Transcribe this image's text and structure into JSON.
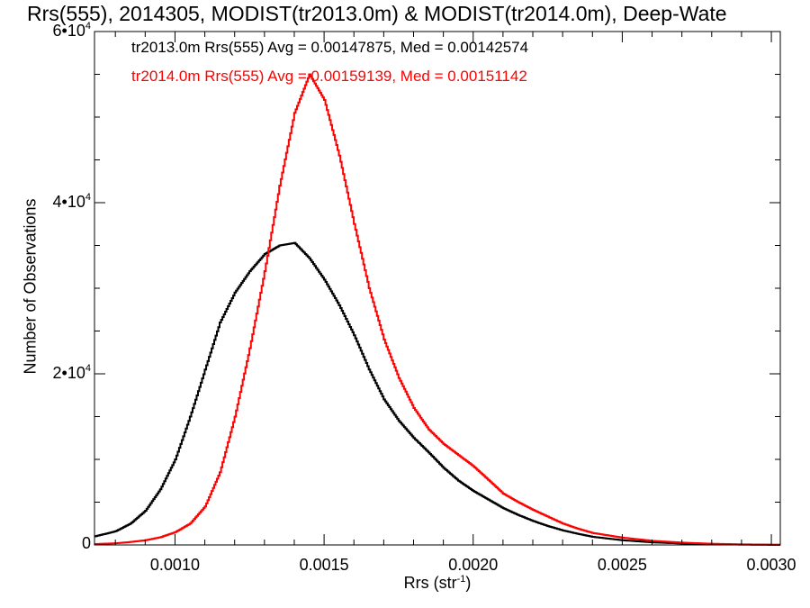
{
  "chart_data": {
    "type": "line",
    "title": "Rrs(555), 2014305, MODIST(tr2013.0m) & MODIST(tr2014.0m), Deep-Wate",
    "xlabel": "Rrs (str",
    "xlabel_exp": "-1",
    "xlabel_close": ")",
    "ylabel": "Number of Observations",
    "xlim": [
      0.00073,
      0.00303
    ],
    "ylim": [
      0,
      60000
    ],
    "x_ticks": [
      "0.0010",
      "0.0015",
      "0.0020",
      "0.0025",
      "0.0030"
    ],
    "x_tick_values": [
      0.001,
      0.0015,
      0.002,
      0.0025,
      0.003
    ],
    "y_ticks": [
      {
        "value": 0,
        "mantissa": "0",
        "exponent": ""
      },
      {
        "value": 20000,
        "mantissa": "2•10",
        "exponent": "4"
      },
      {
        "value": 40000,
        "mantissa": "4•10",
        "exponent": "4"
      },
      {
        "value": 60000,
        "mantissa": "6•10",
        "exponent": "4"
      }
    ],
    "legend": [
      {
        "text": "tr2013.0m Rrs(555) Avg = 0.00147875, Med = 0.00142574",
        "color": "#000000"
      },
      {
        "text": "tr2014.0m Rrs(555) Avg = 0.00159139, Med = 0.00151142",
        "color": "#ff0000"
      }
    ],
    "series": [
      {
        "color": "#000000",
        "points": [
          [
            0.00073,
            1000
          ],
          [
            0.0008,
            1600
          ],
          [
            0.00085,
            2500
          ],
          [
            0.0009,
            4000
          ],
          [
            0.00095,
            6500
          ],
          [
            0.001,
            10000
          ],
          [
            0.00105,
            15000
          ],
          [
            0.0011,
            20500
          ],
          [
            0.00115,
            26000
          ],
          [
            0.0012,
            29500
          ],
          [
            0.00125,
            32000
          ],
          [
            0.0013,
            34000
          ],
          [
            0.00135,
            35000
          ],
          [
            0.0014,
            35300
          ],
          [
            0.00145,
            33500
          ],
          [
            0.0015,
            31000
          ],
          [
            0.00155,
            28000
          ],
          [
            0.0016,
            24500
          ],
          [
            0.00165,
            20500
          ],
          [
            0.0017,
            17000
          ],
          [
            0.00175,
            14500
          ],
          [
            0.0018,
            12500
          ],
          [
            0.00185,
            10800
          ],
          [
            0.0019,
            9000
          ],
          [
            0.00195,
            7500
          ],
          [
            0.002,
            6300
          ],
          [
            0.00205,
            5300
          ],
          [
            0.0021,
            4300
          ],
          [
            0.00215,
            3500
          ],
          [
            0.0022,
            2800
          ],
          [
            0.00225,
            2200
          ],
          [
            0.0023,
            1700
          ],
          [
            0.00235,
            1300
          ],
          [
            0.0024,
            950
          ],
          [
            0.0025,
            550
          ],
          [
            0.0026,
            300
          ],
          [
            0.0027,
            170
          ],
          [
            0.0028,
            90
          ],
          [
            0.0029,
            40
          ],
          [
            0.00303,
            10
          ]
        ]
      },
      {
        "color": "#ff0000",
        "points": [
          [
            0.00073,
            100
          ],
          [
            0.0008,
            200
          ],
          [
            0.00085,
            350
          ],
          [
            0.0009,
            550
          ],
          [
            0.00095,
            900
          ],
          [
            0.001,
            1500
          ],
          [
            0.00105,
            2500
          ],
          [
            0.0011,
            4500
          ],
          [
            0.00115,
            8500
          ],
          [
            0.0012,
            15000
          ],
          [
            0.00125,
            23000
          ],
          [
            0.0013,
            32000
          ],
          [
            0.00135,
            42000
          ],
          [
            0.0014,
            50500
          ],
          [
            0.00145,
            55000
          ],
          [
            0.0015,
            52000
          ],
          [
            0.00155,
            45500
          ],
          [
            0.0016,
            37500
          ],
          [
            0.00165,
            30000
          ],
          [
            0.0017,
            24000
          ],
          [
            0.00175,
            19500
          ],
          [
            0.0018,
            16000
          ],
          [
            0.00185,
            13500
          ],
          [
            0.0019,
            11800
          ],
          [
            0.00195,
            10500
          ],
          [
            0.002,
            9200
          ],
          [
            0.00205,
            7600
          ],
          [
            0.0021,
            6000
          ],
          [
            0.00215,
            5000
          ],
          [
            0.0022,
            4100
          ],
          [
            0.00225,
            3300
          ],
          [
            0.0023,
            2500
          ],
          [
            0.00235,
            1900
          ],
          [
            0.0024,
            1400
          ],
          [
            0.0025,
            850
          ],
          [
            0.0026,
            480
          ],
          [
            0.0027,
            270
          ],
          [
            0.0028,
            140
          ],
          [
            0.0029,
            70
          ],
          [
            0.00303,
            20
          ]
        ]
      }
    ]
  }
}
